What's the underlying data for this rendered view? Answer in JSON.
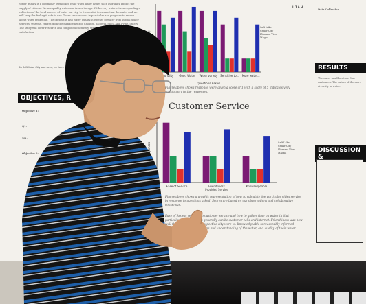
{
  "poster": {
    "university_tag": "UTAH",
    "sections": {
      "objectives": "OBJECTIVES, RQs",
      "results": "RESULTS",
      "discussion": "DISCUSSION &",
      "data_collection": "Data Collection"
    },
    "objective_labels": [
      "Objective 1:",
      "Q1:",
      "M1:",
      "Objective 2:"
    ],
    "left_text": "Water quality is a commonly overlooked issue when water issues such as quality impact the supply of citizens. We use quality water and issues though. With every water citizen regarding a collection of the local sources of water our city. Is it essential to ensure that the water and we will keep the feeling it safe to use. There are concerns in particular and purposes to ensure about water regarding. The obvious is also water quality. Elements of water from supply, utility services, systems, ranges from the management of Calcium, bacteria, Silica and Irvine, others. The study will cover research and compound chemistry, service, customers and service, satisfaction.",
    "left_text2": "In Salt Lake City and area, we have fresh water for...",
    "right_text": "The water in all locations has customers. The values of the more diversity in water.",
    "chart1": {
      "ylabel": "Score (0-4)",
      "xlabel": "Questions Asked",
      "categories": [
        "Personality",
        "Good Water",
        "Wider variety",
        "Sensitive to...",
        "More water..."
      ],
      "caption": "Figure above shows response were given a score of 1 with a score of 5 indicates very satisfactory to the responses."
    },
    "chart2": {
      "title": "Customer Service",
      "ylabel": "Responses",
      "xlabel": "Provided Service",
      "categories": [
        "Ease of Service",
        "Friendliness",
        "Knowledgeable"
      ],
      "caption": "Figure above shows a graphic representation of how to calculate the particular cities service in response to questions asked. Scores are based on our observations and collaborative consensus.",
      "caption2": "Ease of Access referred to customer service and how to gather time on water in that particular city. Responses generally can be customer calls and internet. Friendliness was how well the workers in each respective city were to. Knowledgeable is reasonably informed answers. Knowledge concerns and understanding of the water, and quality of their water supply."
    },
    "legend": [
      "Salt Lake",
      "Cedar City",
      "Pleasant View",
      "Magna"
    ],
    "colors": {
      "purple": "#7b1a73",
      "green": "#1e9a5a",
      "red": "#e0312c",
      "blue": "#1f2fb0"
    }
  },
  "chart_data": [
    {
      "type": "bar",
      "categories": [
        "Personality",
        "Good Water",
        "Wider variety",
        "Sensitive to...",
        "More water..."
      ],
      "series": [
        {
          "name": "Salt Lake",
          "values": [
            4.5,
            4.5,
            4.5,
            3.5,
            1.0
          ]
        },
        {
          "name": "Cedar City",
          "values": [
            3.5,
            3.0,
            2.5,
            1.0,
            1.0
          ]
        },
        {
          "name": "Pleasant View",
          "values": [
            1.5,
            1.5,
            2.0,
            1.0,
            1.0
          ]
        },
        {
          "name": "Magna",
          "values": [
            4.0,
            4.8,
            4.5,
            4.0,
            3.5
          ]
        }
      ],
      "xlabel": "Questions Asked",
      "ylabel": "Score (0-4)"
    },
    {
      "type": "bar",
      "title": "Customer Service",
      "categories": [
        "Ease of Service",
        "Friendliness",
        "Knowledgeable"
      ],
      "series": [
        {
          "name": "Salt Lake",
          "values": [
            4.5,
            2.0,
            2.0
          ]
        },
        {
          "name": "Cedar City",
          "values": [
            2.0,
            2.0,
            1.0
          ]
        },
        {
          "name": "Pleasant View",
          "values": [
            1.0,
            1.0,
            1.0
          ]
        },
        {
          "name": "Magna",
          "values": [
            3.8,
            4.0,
            3.5
          ]
        }
      ],
      "xlabel": "Provided Service",
      "ylabel": "Responses"
    }
  ]
}
